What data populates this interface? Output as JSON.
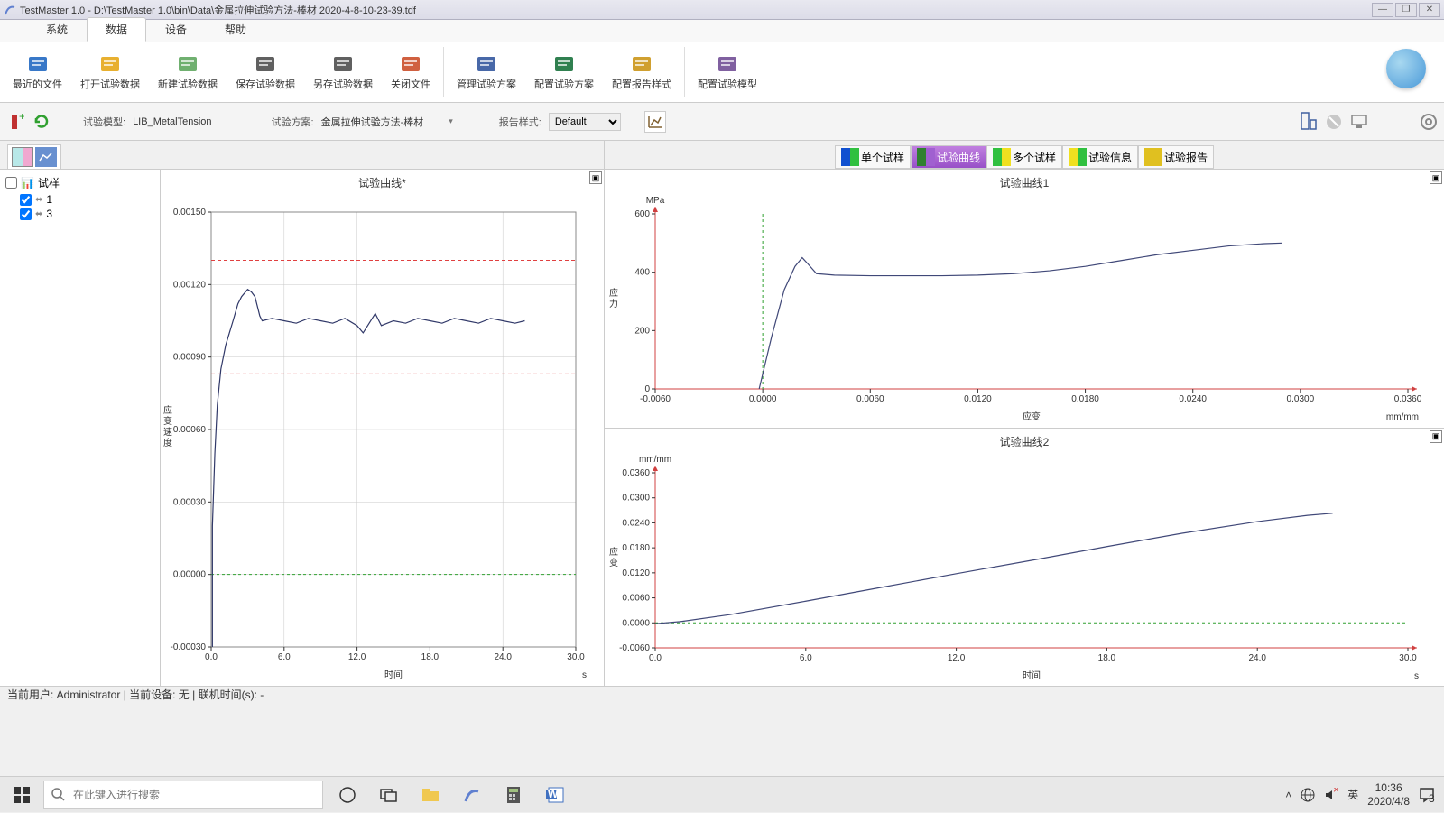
{
  "window": {
    "title": "TestMaster 1.0 - D:\\TestMaster 1.0\\bin\\Data\\金属拉伸试验方法-棒材 2020-4-8-10-23-39.tdf"
  },
  "menu": {
    "items": [
      "系统",
      "数据",
      "设备",
      "帮助"
    ],
    "active": 1
  },
  "ribbon": {
    "buttons": [
      {
        "label": "最近的文件",
        "color": "#3878c8"
      },
      {
        "label": "打开试验数据",
        "color": "#e8b030"
      },
      {
        "label": "新建试验数据",
        "color": "#70b070"
      },
      {
        "label": "保存试验数据",
        "color": "#606060"
      },
      {
        "label": "另存试验数据",
        "color": "#606060"
      },
      {
        "label": "关闭文件",
        "color": "#d06040"
      },
      {
        "label": "管理试验方案",
        "color": "#4868a8"
      },
      {
        "label": "配置试验方案",
        "color": "#308050"
      },
      {
        "label": "配置报告样式",
        "color": "#d0a030"
      },
      {
        "label": "配置试验模型",
        "color": "#8060a0"
      }
    ]
  },
  "toolbar2": {
    "model_label": "试验模型:",
    "model_value": "LIB_MetalTension",
    "plan_label": "试验方案:",
    "plan_value": "金属拉伸试验方法-棒材",
    "report_label": "报告样式:",
    "report_value": "Default"
  },
  "tree": {
    "title": "试样",
    "items": [
      "1",
      "3"
    ]
  },
  "left_chart": {
    "title": "试验曲线*",
    "xlabel": "时间",
    "xunit": "s",
    "ylabel": "应变速度",
    "xlim": [
      0,
      30
    ],
    "xticks": [
      0,
      6,
      12,
      18,
      24,
      30
    ],
    "xtick_labels": [
      "0.0",
      "6.0",
      "12.0",
      "18.0",
      "24.0",
      "30.0"
    ],
    "ylim": [
      -0.0003,
      0.0015
    ],
    "yticks": [
      -0.0003,
      0.0,
      0.0003,
      0.0006,
      0.0009,
      0.0012,
      0.0015
    ],
    "ytick_labels": [
      "-0.00030",
      "0.00000",
      "0.00030",
      "0.00060",
      "0.00090",
      "0.00120",
      "0.00150"
    ],
    "refline_red1": 0.0013,
    "refline_red2": 0.00083,
    "refline_green": 0.0,
    "line_color": "#303868",
    "grid_color": "#c8c8c8",
    "bg": "#ffffff",
    "series": [
      [
        0.1,
        -0.0003
      ],
      [
        0.1,
        0.0002
      ],
      [
        0.3,
        0.0005
      ],
      [
        0.5,
        0.0007
      ],
      [
        0.8,
        0.00085
      ],
      [
        1.2,
        0.00095
      ],
      [
        1.8,
        0.00105
      ],
      [
        2.2,
        0.00112
      ],
      [
        2.5,
        0.00115
      ],
      [
        3.0,
        0.00118
      ],
      [
        3.3,
        0.00117
      ],
      [
        3.6,
        0.00115
      ],
      [
        4.0,
        0.00107
      ],
      [
        4.2,
        0.00105
      ],
      [
        5,
        0.00106
      ],
      [
        6,
        0.00105
      ],
      [
        7,
        0.00104
      ],
      [
        8,
        0.00106
      ],
      [
        9,
        0.00105
      ],
      [
        10,
        0.00104
      ],
      [
        11,
        0.00106
      ],
      [
        12,
        0.00103
      ],
      [
        12.5,
        0.001
      ],
      [
        13,
        0.00104
      ],
      [
        13.5,
        0.00108
      ],
      [
        14,
        0.00103
      ],
      [
        15,
        0.00105
      ],
      [
        16,
        0.00104
      ],
      [
        17,
        0.00106
      ],
      [
        18,
        0.00105
      ],
      [
        19,
        0.00104
      ],
      [
        20,
        0.00106
      ],
      [
        21,
        0.00105
      ],
      [
        22,
        0.00104
      ],
      [
        23,
        0.00106
      ],
      [
        24,
        0.00105
      ],
      [
        25,
        0.00104
      ],
      [
        25.8,
        0.00105
      ]
    ]
  },
  "right_tabs": {
    "items": [
      "单个试样",
      "试验曲线",
      "多个试样",
      "试验信息",
      "试验报告"
    ],
    "active": 1,
    "colors": [
      [
        "#1050d0",
        "#30c040"
      ],
      [
        "#308030",
        "#a060d0"
      ],
      [
        "#30c040",
        "#f0e020"
      ],
      [
        "#f0e020",
        "#30c040"
      ],
      [
        "#e0c020",
        "#e0c020"
      ]
    ]
  },
  "chart1": {
    "title": "试验曲线1",
    "ylabel": "应力",
    "yunit": "MPa",
    "xlabel": "应变",
    "xunit": "mm/mm",
    "xlim": [
      -0.006,
      0.036
    ],
    "xticks": [
      -0.006,
      0,
      0.006,
      0.012,
      0.018,
      0.024,
      0.03,
      0.036
    ],
    "xtick_labels": [
      "-0.0060",
      "0.0000",
      "0.0060",
      "0.0120",
      "0.0180",
      "0.0240",
      "0.0300",
      "0.0360"
    ],
    "ylim": [
      0,
      600
    ],
    "yticks": [
      0,
      200,
      400,
      600
    ],
    "ytick_labels": [
      "0",
      "200",
      "400",
      "600"
    ],
    "green_vline": 0.0,
    "line_color": "#404878",
    "series": [
      [
        -0.0002,
        0
      ],
      [
        0.0005,
        180
      ],
      [
        0.0012,
        340
      ],
      [
        0.0018,
        420
      ],
      [
        0.0022,
        450
      ],
      [
        0.0025,
        430
      ],
      [
        0.003,
        395
      ],
      [
        0.004,
        390
      ],
      [
        0.006,
        388
      ],
      [
        0.008,
        388
      ],
      [
        0.01,
        388
      ],
      [
        0.012,
        390
      ],
      [
        0.014,
        395
      ],
      [
        0.016,
        405
      ],
      [
        0.018,
        420
      ],
      [
        0.02,
        440
      ],
      [
        0.022,
        460
      ],
      [
        0.024,
        475
      ],
      [
        0.026,
        490
      ],
      [
        0.028,
        498
      ],
      [
        0.029,
        500
      ]
    ]
  },
  "chart2": {
    "title": "试验曲线2",
    "ylabel": "应变",
    "yunit": "mm/mm",
    "xlabel": "时间",
    "xunit": "s",
    "xlim": [
      0,
      30
    ],
    "xticks": [
      0,
      6,
      12,
      18,
      24,
      30
    ],
    "xtick_labels": [
      "0.0",
      "6.0",
      "12.0",
      "18.0",
      "24.0",
      "30.0"
    ],
    "ylim": [
      -0.006,
      0.036
    ],
    "yticks": [
      -0.006,
      0,
      0.006,
      0.012,
      0.018,
      0.024,
      0.03,
      0.036
    ],
    "ytick_labels": [
      "-0.0060",
      "0.0000",
      "0.0060",
      "0.0120",
      "0.0180",
      "0.0240",
      "0.0300",
      "0.0360"
    ],
    "green_hline": 0.0,
    "line_color": "#404878",
    "series": [
      [
        0,
        -0.0002
      ],
      [
        1,
        0.0003
      ],
      [
        3,
        0.002
      ],
      [
        6,
        0.0052
      ],
      [
        9,
        0.0085
      ],
      [
        12,
        0.0118
      ],
      [
        15,
        0.015
      ],
      [
        18,
        0.0183
      ],
      [
        21,
        0.0215
      ],
      [
        24,
        0.0243
      ],
      [
        26,
        0.0258
      ],
      [
        27,
        0.0263
      ]
    ]
  },
  "status": {
    "text": "当前用户:  Administrator   |  当前设备:  无  |  联机时间(s):  -"
  },
  "taskbar": {
    "search_placeholder": "在此键入进行搜索",
    "ime": "英",
    "time": "10:36",
    "date": "2020/4/8"
  }
}
